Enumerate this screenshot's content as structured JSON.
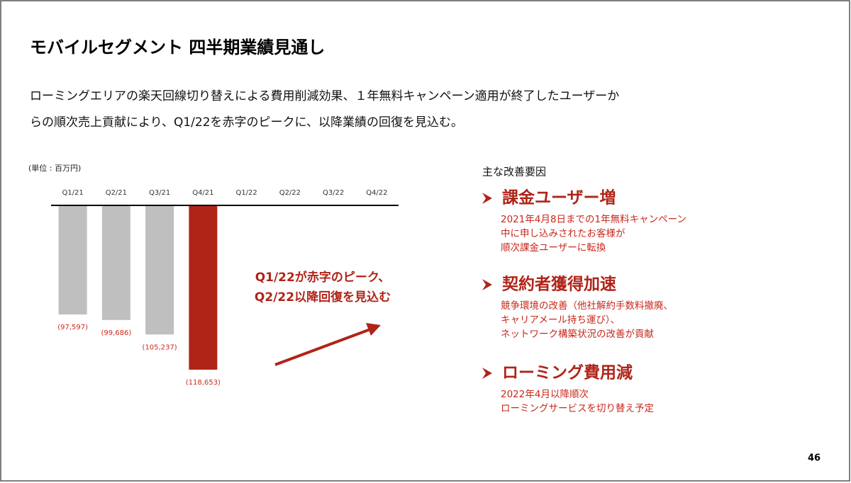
{
  "title": "モバイルセグメント 四半期業績見通し",
  "description": [
    "ローミングエリアの楽天回線切り替えによる費用削減効果、１年無料キャンペーン適用が終了したユーザーか",
    "らの順次売上貢献により、Q1/22を赤字のピークに、以降業績の回復を見込む。"
  ],
  "unit": "(単位 : 百万円)",
  "chart_data": {
    "type": "bar",
    "categories": [
      "Q1/21",
      "Q2/21",
      "Q3/21",
      "Q4/21",
      "Q1/22",
      "Q2/22",
      "Q3/22",
      "Q4/22"
    ],
    "values": [
      -97597,
      -99686,
      -105237,
      -118653,
      null,
      null,
      null,
      null
    ],
    "value_labels": [
      "(97,597)",
      "(99,686)",
      "(105,237)",
      "(118,653)",
      null,
      null,
      null,
      null
    ],
    "colors": [
      "#bfbfbf",
      "#bfbfbf",
      "#bfbfbf",
      "#b02418",
      null,
      null,
      null,
      null
    ],
    "ylim": [
      -130000,
      -56000
    ],
    "annotation": [
      "Q1/22が赤字のピーク、",
      "Q2/22以降回復を見込む"
    ]
  },
  "factors": {
    "heading": "主な改善要因",
    "items": [
      {
        "title": "課金ユーザー増",
        "lines": [
          "2021年4月8日までの1年無料キャンペーン",
          "中に申し込みされたお客様が",
          "順次課金ユーザーに転換"
        ]
      },
      {
        "title": "契約者獲得加速",
        "lines": [
          "競争環境の改善（他社解約手数料撤廃、",
          "キャリアメール持ち運び）、",
          "ネットワーク構築状況の改善が貢献"
        ]
      },
      {
        "title": "ローミング費用減",
        "lines": [
          "2022年4月以降順次",
          "ローミングサービスを切り替え予定"
        ]
      }
    ]
  },
  "page_number": "46"
}
